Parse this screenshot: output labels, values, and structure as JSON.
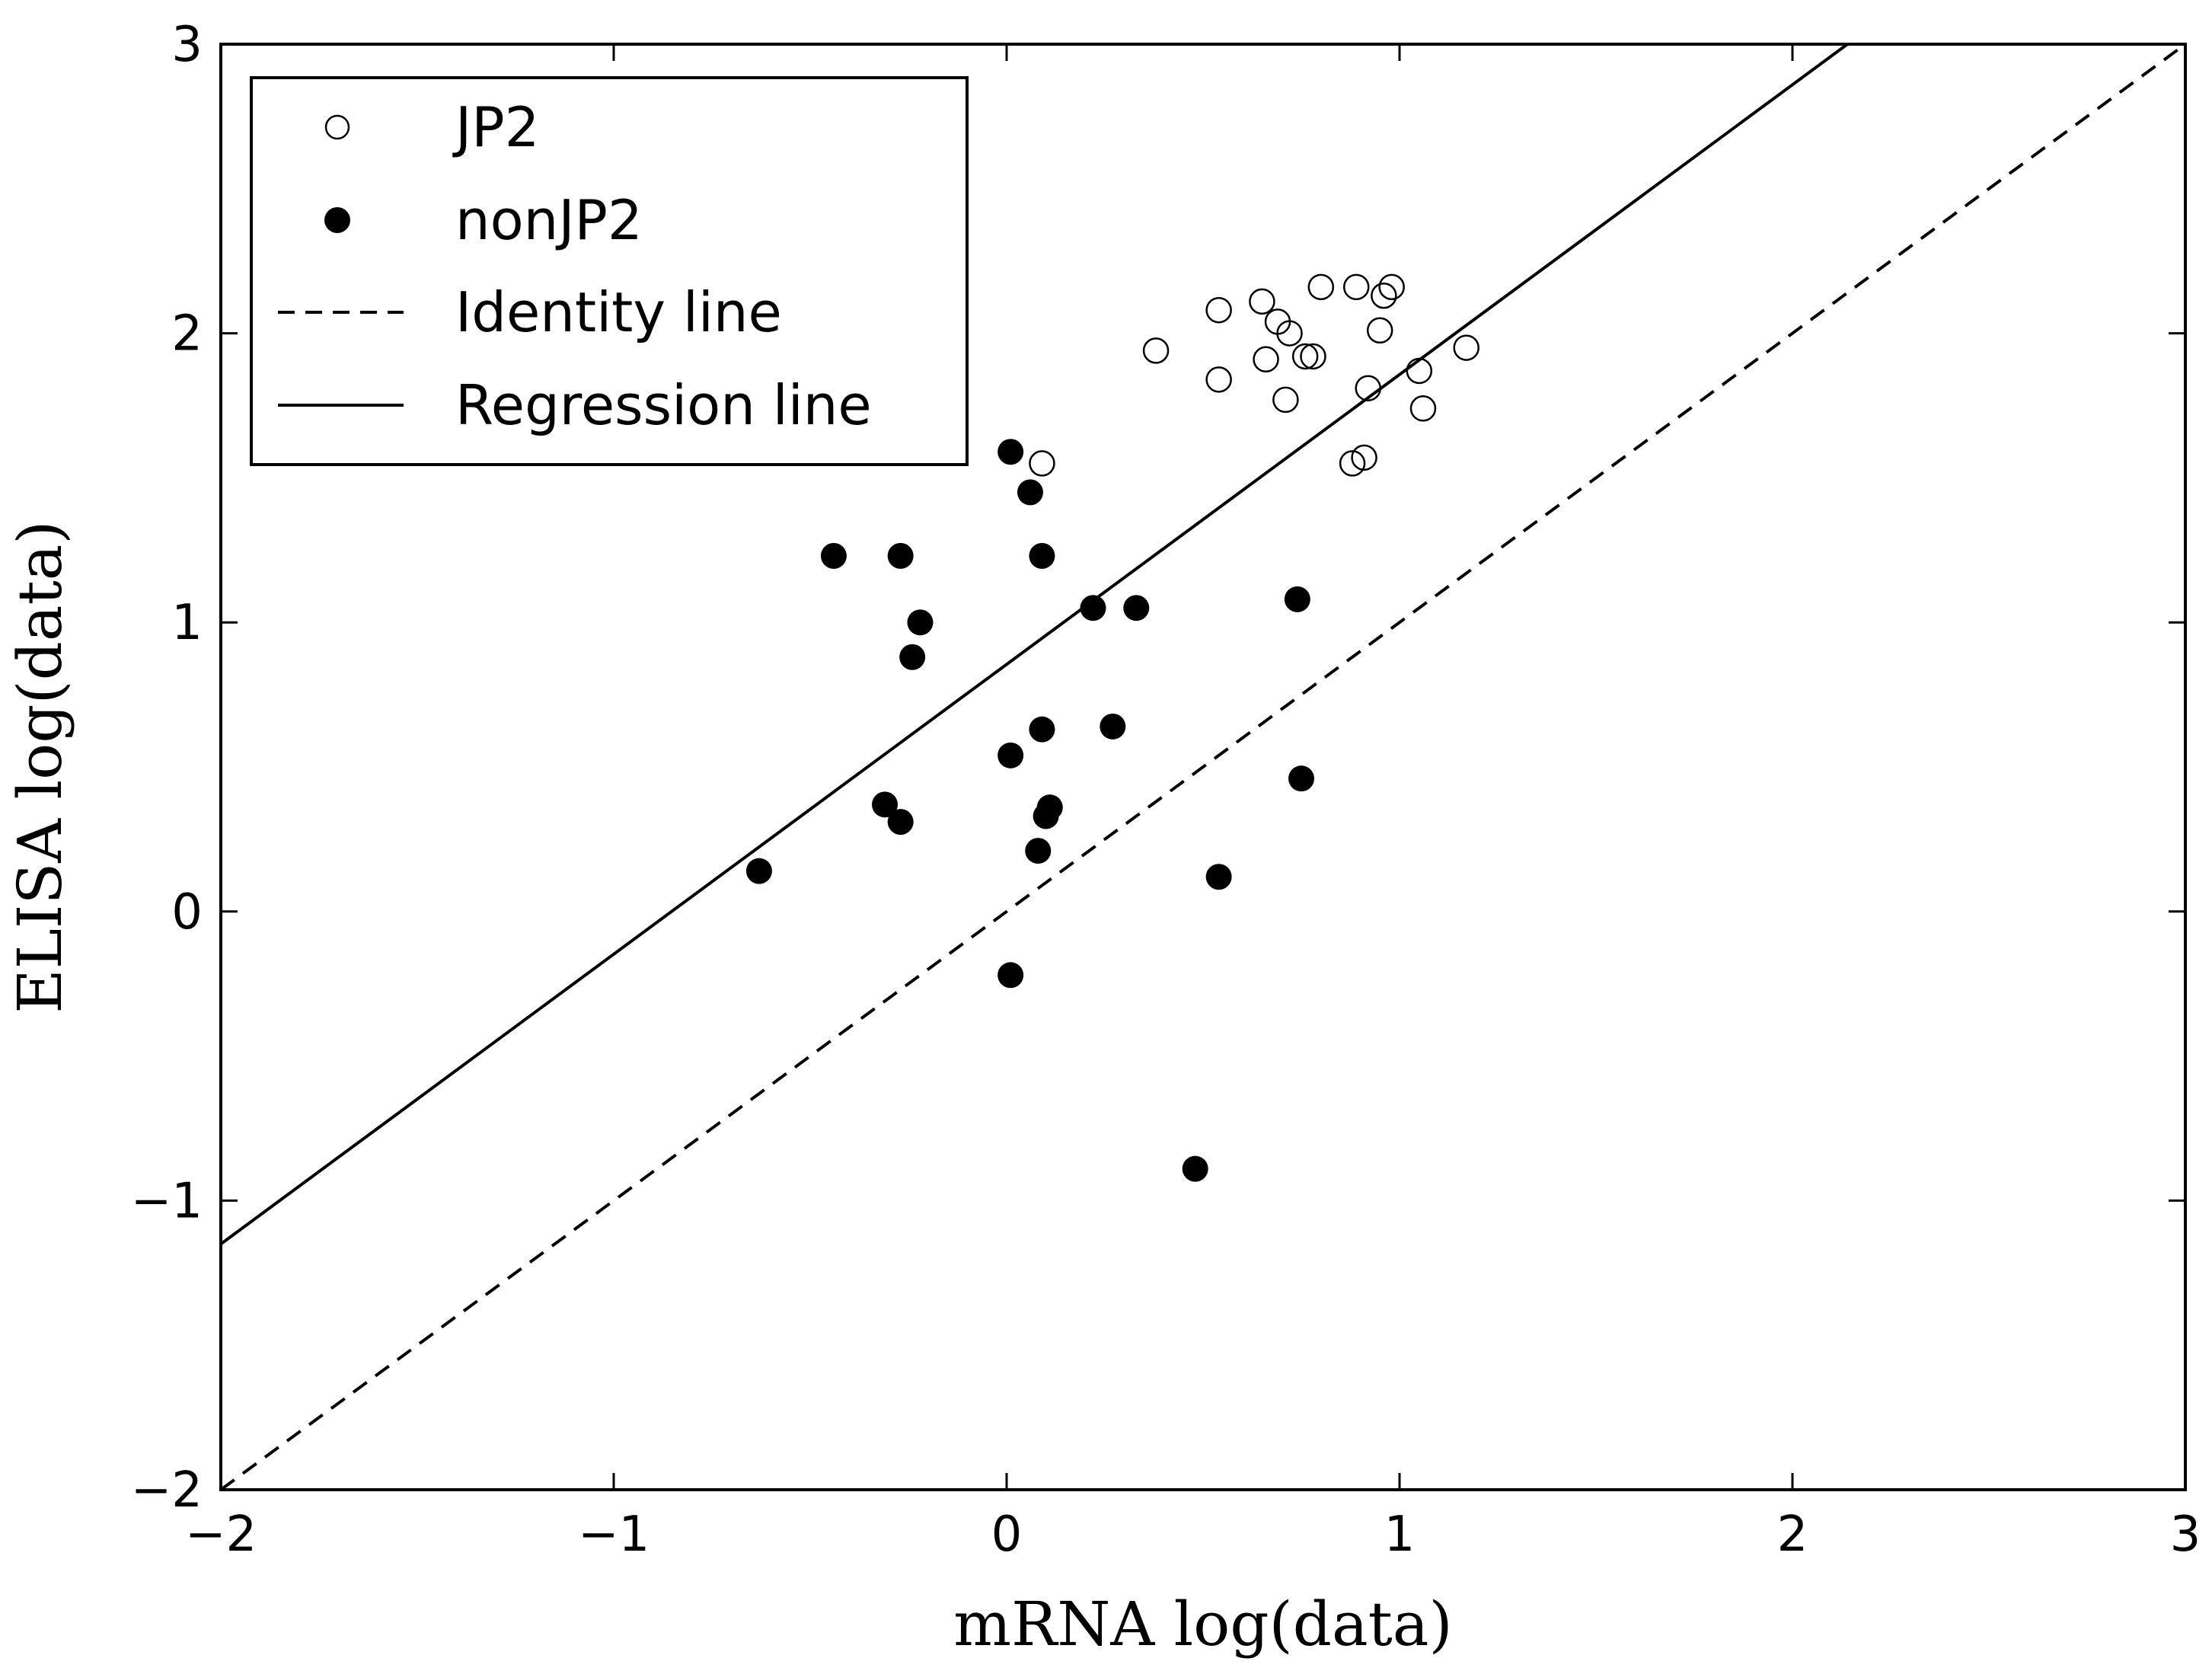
{
  "chart_data": {
    "type": "scatter",
    "xlabel": "mRNA   log(data)",
    "ylabel": "ELISA   log(data)",
    "xlim": [
      -2,
      3
    ],
    "ylim": [
      -2,
      3
    ],
    "xticks": [
      -2,
      -1,
      0,
      1,
      2,
      3
    ],
    "yticks": [
      -2,
      -1,
      0,
      1,
      2,
      3
    ],
    "xtick_labels": [
      "−2",
      "−1",
      "0",
      "1",
      "2",
      "3"
    ],
    "ytick_labels": [
      "−2",
      "−1",
      "0",
      "1",
      "2",
      "3"
    ],
    "grid": false,
    "legend_position": "top-left",
    "series": [
      {
        "name": "JP2",
        "marker": "open-circle",
        "points": [
          [
            0.09,
            1.55
          ],
          [
            0.38,
            1.94
          ],
          [
            0.54,
            2.08
          ],
          [
            0.54,
            1.84
          ],
          [
            0.65,
            2.11
          ],
          [
            0.69,
            2.04
          ],
          [
            0.72,
            2.0
          ],
          [
            0.66,
            1.91
          ],
          [
            0.71,
            1.77
          ],
          [
            0.76,
            1.92
          ],
          [
            0.78,
            1.92
          ],
          [
            0.8,
            2.16
          ],
          [
            0.89,
            2.16
          ],
          [
            0.92,
            1.81
          ],
          [
            0.95,
            2.01
          ],
          [
            0.96,
            2.13
          ],
          [
            0.98,
            2.16
          ],
          [
            0.88,
            1.55
          ],
          [
            0.91,
            1.57
          ],
          [
            1.05,
            1.87
          ],
          [
            1.06,
            1.74
          ],
          [
            1.17,
            1.95
          ]
        ]
      },
      {
        "name": "nonJP2",
        "marker": "filled-circle",
        "points": [
          [
            0.01,
            1.59
          ],
          [
            0.06,
            1.45
          ],
          [
            -0.44,
            1.23
          ],
          [
            -0.27,
            1.23
          ],
          [
            0.09,
            1.23
          ],
          [
            -0.22,
            1.0
          ],
          [
            -0.24,
            0.88
          ],
          [
            0.22,
            1.05
          ],
          [
            0.33,
            1.05
          ],
          [
            0.74,
            1.08
          ],
          [
            0.09,
            0.63
          ],
          [
            0.27,
            0.64
          ],
          [
            0.01,
            0.54
          ],
          [
            -0.31,
            0.37
          ],
          [
            -0.27,
            0.31
          ],
          [
            0.11,
            0.36
          ],
          [
            0.1,
            0.33
          ],
          [
            0.08,
            0.21
          ],
          [
            0.75,
            0.46
          ],
          [
            -0.63,
            0.14
          ],
          [
            0.54,
            0.12
          ],
          [
            0.01,
            -0.22
          ],
          [
            0.48,
            -0.89
          ]
        ]
      },
      {
        "name": "Identity line",
        "style": "dashed",
        "points": [
          [
            -2,
            -2
          ],
          [
            3,
            3
          ]
        ]
      },
      {
        "name": "Regression line",
        "style": "solid",
        "points": [
          [
            -2,
            -1.15
          ],
          [
            2.14,
            3.0
          ]
        ]
      }
    ]
  }
}
